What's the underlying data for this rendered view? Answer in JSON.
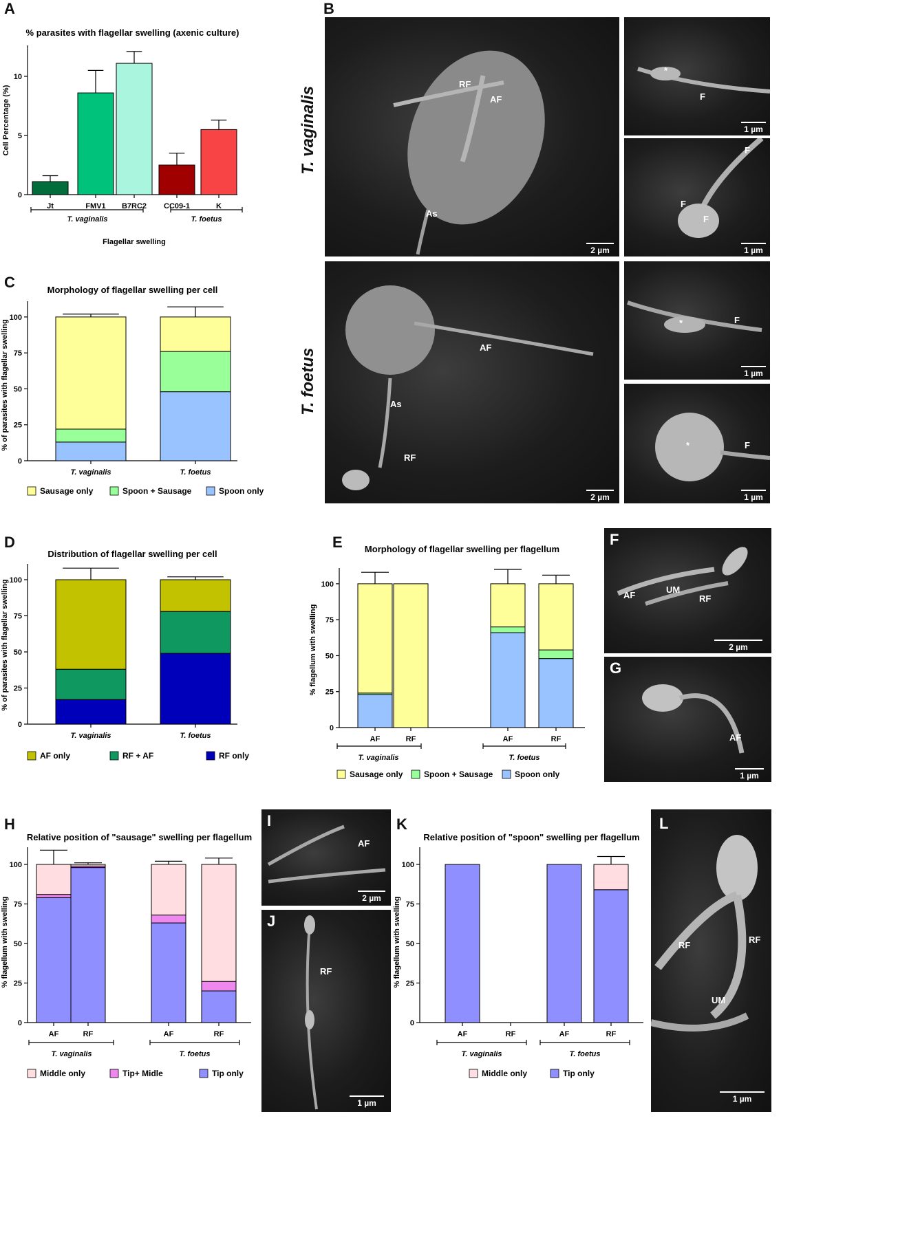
{
  "panels": {
    "A": "A",
    "B": "B",
    "C": "C",
    "D": "D",
    "E": "E",
    "F": "F",
    "G": "G",
    "H": "H",
    "I": "I",
    "J": "J",
    "K": "K",
    "L": "L"
  },
  "species_labels": {
    "tv": "T. vaginalis",
    "tf": "T. foetus"
  },
  "micro_labels": {
    "RF": "RF",
    "AF": "AF",
    "As": "As",
    "F": "F",
    "UM": "UM",
    "star": "*",
    "scale_2": "2 µm",
    "scale_1": "1 µm"
  },
  "colors": {
    "sausage": "#ffff99",
    "spoon_sausage": "#99ff99",
    "spoon": "#99c3ff",
    "af_only": "#c2c200",
    "rf_af": "#0f9960",
    "rf_only": "#0000bb",
    "middle": "#ffdde1",
    "tip_middle": "#ee88ee",
    "tip": "#8f8fff",
    "jt": "#006d3b",
    "fmv1": "#00c27a",
    "b7rc2": "#aaf5dd",
    "cc09": "#a10000",
    "k": "#f84444"
  },
  "chart_data": [
    {
      "id": "A",
      "type": "bar",
      "title": "% parasites with flagellar swelling (axenic culture)",
      "ylabel": "Cell Percentage (%)",
      "xlabel": "Flagellar swelling",
      "ylim": [
        0,
        12.5
      ],
      "yticks": [
        "0",
        "5",
        "10"
      ],
      "categories": [
        "Jt",
        "FMV1",
        "B7RC2",
        "CC09-1",
        "K"
      ],
      "values": [
        1.1,
        8.6,
        11.1,
        2.5,
        5.5
      ],
      "errors": [
        0.5,
        1.9,
        1.0,
        1.0,
        0.8
      ],
      "groups": [
        "T. vaginalis",
        "T. foetus"
      ]
    },
    {
      "id": "C",
      "type": "bar",
      "title": "Morphology of flagellar swelling per cell",
      "ylabel": "% of parasites with flagellar swelling",
      "ylim": [
        0,
        110
      ],
      "yticks": [
        "0",
        "25",
        "50",
        "75",
        "100"
      ],
      "categories": [
        "T. vaginalis",
        "T. foetus"
      ],
      "series": [
        {
          "name": "Spoon only",
          "values": [
            13,
            48
          ],
          "errors": [
            3,
            5
          ]
        },
        {
          "name": "Spoon + Sausage",
          "values": [
            9,
            28
          ],
          "errors": [
            4,
            12
          ]
        },
        {
          "name": "Sausage only",
          "values": [
            78,
            24
          ],
          "errors": [
            2,
            7
          ]
        }
      ],
      "legend": [
        "Sausage only",
        "Spoon + Sausage",
        "Spoon only"
      ]
    },
    {
      "id": "D",
      "type": "bar",
      "title": "Distribution of flagellar swelling per cell",
      "ylabel": "% of parasites with flagellar swelling",
      "ylim": [
        0,
        110
      ],
      "yticks": [
        "0",
        "25",
        "50",
        "75",
        "100"
      ],
      "categories": [
        "T. vaginalis",
        "T. foetus"
      ],
      "series": [
        {
          "name": "RF only",
          "values": [
            17,
            49
          ],
          "errors": [
            7,
            4
          ]
        },
        {
          "name": "RF + AF",
          "values": [
            21,
            29
          ],
          "errors": [
            3,
            3
          ]
        },
        {
          "name": "AF only",
          "values": [
            62,
            22
          ],
          "errors": [
            8,
            2
          ]
        }
      ],
      "legend": [
        "AF only",
        "RF + AF",
        "RF only"
      ]
    },
    {
      "id": "E",
      "type": "bar",
      "title": "Morphology of flagellar swelling per flagellum",
      "ylabel": "% flagellum with swelling",
      "ylim": [
        0,
        110
      ],
      "yticks": [
        "0",
        "25",
        "50",
        "75",
        "100"
      ],
      "categories": [
        "AF",
        "RF",
        "AF",
        "RF"
      ],
      "groups": [
        "T. vaginalis",
        "T. foetus"
      ],
      "series": [
        {
          "name": "Spoon only",
          "values": [
            23,
            0,
            66,
            48
          ],
          "errors": [
            8,
            0,
            5,
            2
          ]
        },
        {
          "name": "Spoon + Sausage",
          "values": [
            1,
            0,
            4,
            6
          ],
          "errors": [
            0,
            0,
            0,
            2
          ]
        },
        {
          "name": "Sausage only",
          "values": [
            76,
            100,
            30,
            46
          ],
          "errors": [
            8,
            0,
            10,
            6
          ]
        }
      ],
      "legend": [
        "Sausage only",
        "Spoon + Sausage",
        "Spoon only"
      ]
    },
    {
      "id": "H",
      "type": "bar",
      "title": "Relative position of \"sausage\" swelling per flagellum",
      "ylabel": "% flagellum with swelling",
      "ylim": [
        0,
        110
      ],
      "yticks": [
        "0",
        "25",
        "50",
        "75",
        "100"
      ],
      "categories": [
        "AF",
        "RF",
        "AF",
        "RF"
      ],
      "groups": [
        "T. vaginalis",
        "T. foetus"
      ],
      "series": [
        {
          "name": "Tip only",
          "values": [
            79,
            98,
            63,
            20
          ],
          "errors": [
            1,
            0,
            2,
            2
          ]
        },
        {
          "name": "Tip+ Midle",
          "values": [
            2,
            1,
            5,
            6
          ],
          "errors": [
            7,
            0,
            1,
            1
          ]
        },
        {
          "name": "Middle only",
          "values": [
            19,
            1,
            32,
            74
          ],
          "errors": [
            9,
            1,
            2,
            4
          ]
        }
      ],
      "legend": [
        "Middle only",
        "Tip+ Midle",
        "Tip only"
      ]
    },
    {
      "id": "K",
      "type": "bar",
      "title": "Relative position of \"spoon\" swelling per flagellum",
      "ylabel": "% flagellum with swelling",
      "ylim": [
        0,
        110
      ],
      "yticks": [
        "0",
        "25",
        "50",
        "75",
        "100"
      ],
      "categories": [
        "AF",
        "RF",
        "AF",
        "RF"
      ],
      "groups": [
        "T. vaginalis",
        "T. foetus"
      ],
      "series": [
        {
          "name": "Tip only",
          "values": [
            100,
            0,
            100,
            84
          ],
          "errors": [
            0,
            0,
            0,
            4
          ]
        },
        {
          "name": "Middle only",
          "values": [
            0,
            0,
            0,
            16
          ],
          "errors": [
            0,
            0,
            0,
            5
          ]
        }
      ],
      "legend": [
        "Middle only",
        "Tip only"
      ]
    }
  ]
}
